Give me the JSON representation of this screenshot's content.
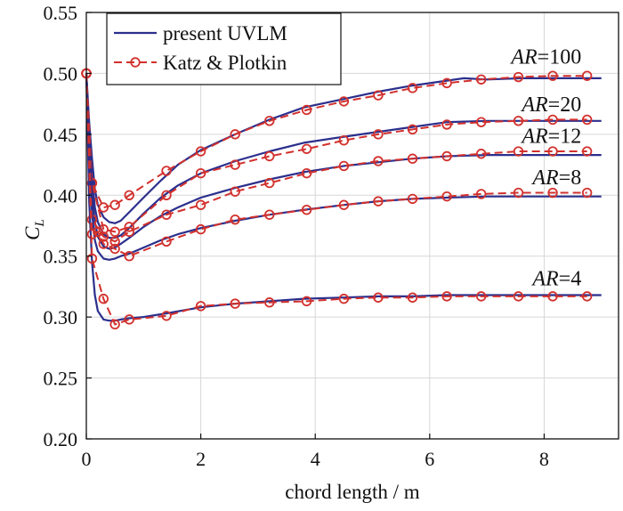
{
  "chart_data": {
    "type": "line",
    "xlabel": "chord length / m",
    "ylabel": "C",
    "ylabel_sub": "L",
    "xlim": [
      0,
      9.3
    ],
    "ylim": [
      0.2,
      0.55
    ],
    "xticks": [
      "0",
      "2",
      "4",
      "6",
      "8"
    ],
    "xtick_values": [
      0,
      2,
      4,
      6,
      8
    ],
    "yticks": [
      "0.20",
      "0.25",
      "0.30",
      "0.35",
      "0.40",
      "0.45",
      "0.50",
      "0.55"
    ],
    "ytick_values": [
      0.2,
      0.25,
      0.3,
      0.35,
      0.4,
      0.45,
      0.5,
      0.55
    ],
    "grid": true,
    "legend": {
      "placement": "top-left",
      "entries": [
        {
          "label": "present UVLM",
          "style": "solid",
          "color": "#2b2f8c"
        },
        {
          "label": "Katz & Plotkin",
          "style": "dashed-circle",
          "color": "#d2312d"
        }
      ]
    },
    "ar_labels": [
      {
        "italic": "AR",
        "text": "=100",
        "x": 8.65,
        "y": 0.508
      },
      {
        "italic": "AR",
        "text": "=20",
        "x": 8.65,
        "y": 0.469
      },
      {
        "italic": "AR",
        "text": "=12",
        "x": 8.65,
        "y": 0.443
      },
      {
        "italic": "AR",
        "text": "=8",
        "x": 8.65,
        "y": 0.409
      },
      {
        "italic": "AR",
        "text": "=4",
        "x": 8.65,
        "y": 0.326
      }
    ],
    "series": [
      {
        "name": "AR=100",
        "uvlm": {
          "x": [
            0,
            0.05,
            0.1,
            0.15,
            0.2,
            0.3,
            0.4,
            0.5,
            0.6,
            0.75,
            1.0,
            1.3,
            1.6,
            2.0,
            2.6,
            3.2,
            3.8,
            4.5,
            5.1,
            5.7,
            6.3,
            6.6,
            7.0,
            7.6,
            8.2,
            8.8,
            9.0
          ],
          "y": [
            0.5,
            0.46,
            0.43,
            0.405,
            0.392,
            0.382,
            0.378,
            0.377,
            0.379,
            0.386,
            0.398,
            0.412,
            0.425,
            0.437,
            0.45,
            0.462,
            0.472,
            0.479,
            0.485,
            0.49,
            0.494,
            0.496,
            0.495,
            0.496,
            0.496,
            0.496,
            0.496
          ]
        },
        "katz": {
          "x": [
            0,
            0.1,
            0.3,
            0.5,
            0.75,
            1.4,
            2.0,
            2.6,
            3.2,
            3.85,
            4.5,
            5.1,
            5.7,
            6.3,
            6.9,
            7.55,
            8.15,
            8.75
          ],
          "y": [
            0.5,
            0.41,
            0.39,
            0.392,
            0.4,
            0.42,
            0.436,
            0.45,
            0.461,
            0.47,
            0.477,
            0.482,
            0.488,
            0.492,
            0.495,
            0.497,
            0.498,
            0.498
          ]
        }
      },
      {
        "name": "AR=20",
        "uvlm": {
          "x": [
            0,
            0.05,
            0.1,
            0.15,
            0.2,
            0.3,
            0.4,
            0.5,
            0.6,
            0.75,
            1.0,
            1.3,
            1.6,
            2.0,
            2.6,
            3.2,
            3.8,
            4.5,
            5.1,
            5.7,
            6.3,
            7.0,
            7.6,
            8.2,
            8.8,
            9.0
          ],
          "y": [
            0.5,
            0.45,
            0.415,
            0.39,
            0.378,
            0.368,
            0.365,
            0.365,
            0.367,
            0.373,
            0.385,
            0.398,
            0.408,
            0.418,
            0.428,
            0.436,
            0.443,
            0.448,
            0.452,
            0.456,
            0.46,
            0.461,
            0.461,
            0.461,
            0.461,
            0.461
          ]
        },
        "katz": {
          "x": [
            0,
            0.1,
            0.3,
            0.5,
            0.75,
            1.4,
            2.0,
            2.6,
            3.2,
            3.85,
            4.5,
            5.1,
            5.7,
            6.3,
            6.9,
            7.55,
            8.15,
            8.75
          ],
          "y": [
            0.5,
            0.41,
            0.372,
            0.37,
            0.374,
            0.4,
            0.418,
            0.425,
            0.432,
            0.438,
            0.445,
            0.45,
            0.454,
            0.458,
            0.46,
            0.461,
            0.462,
            0.462
          ]
        }
      },
      {
        "name": "AR=12",
        "uvlm": {
          "x": [
            0,
            0.05,
            0.1,
            0.15,
            0.2,
            0.3,
            0.4,
            0.5,
            0.6,
            0.75,
            1.0,
            1.3,
            1.6,
            2.0,
            2.6,
            3.2,
            3.8,
            4.5,
            5.1,
            5.7,
            6.3,
            7.0,
            7.6,
            8.2,
            8.8,
            9.0
          ],
          "y": [
            0.5,
            0.44,
            0.4,
            0.378,
            0.366,
            0.358,
            0.356,
            0.357,
            0.36,
            0.365,
            0.374,
            0.383,
            0.39,
            0.398,
            0.406,
            0.413,
            0.419,
            0.424,
            0.427,
            0.43,
            0.432,
            0.433,
            0.433,
            0.433,
            0.433,
            0.433
          ]
        },
        "katz": {
          "x": [
            0,
            0.1,
            0.3,
            0.5,
            0.75,
            1.4,
            2.0,
            2.6,
            3.2,
            3.85,
            4.5,
            5.1,
            5.7,
            6.3,
            6.9,
            7.55,
            8.15,
            8.75
          ],
          "y": [
            0.5,
            0.38,
            0.366,
            0.362,
            0.37,
            0.384,
            0.392,
            0.403,
            0.41,
            0.418,
            0.424,
            0.428,
            0.43,
            0.432,
            0.434,
            0.436,
            0.436,
            0.436
          ]
        }
      },
      {
        "name": "AR=8",
        "uvlm": {
          "x": [
            0,
            0.05,
            0.1,
            0.15,
            0.2,
            0.3,
            0.4,
            0.5,
            0.6,
            0.75,
            1.0,
            1.3,
            1.6,
            2.0,
            2.6,
            3.2,
            3.8,
            4.5,
            5.1,
            5.7,
            6.3,
            7.0,
            7.6,
            8.2,
            8.8,
            9.0
          ],
          "y": [
            0.5,
            0.43,
            0.385,
            0.363,
            0.354,
            0.348,
            0.347,
            0.348,
            0.35,
            0.352,
            0.357,
            0.363,
            0.368,
            0.373,
            0.379,
            0.384,
            0.388,
            0.392,
            0.395,
            0.397,
            0.398,
            0.399,
            0.399,
            0.399,
            0.399,
            0.399
          ]
        },
        "katz": {
          "x": [
            0,
            0.1,
            0.2,
            0.3,
            0.5,
            0.75,
            1.4,
            2.0,
            2.6,
            3.2,
            3.85,
            4.5,
            5.1,
            5.7,
            6.3,
            6.9,
            7.55,
            8.15,
            8.75
          ],
          "y": [
            0.5,
            0.368,
            0.37,
            0.36,
            0.356,
            0.35,
            0.362,
            0.372,
            0.38,
            0.384,
            0.388,
            0.392,
            0.395,
            0.397,
            0.399,
            0.401,
            0.402,
            0.402,
            0.402
          ]
        }
      },
      {
        "name": "AR=4",
        "uvlm": {
          "x": [
            0,
            0.05,
            0.1,
            0.15,
            0.2,
            0.3,
            0.4,
            0.5,
            0.6,
            0.75,
            1.0,
            1.4,
            2.0,
            2.6,
            3.2,
            3.8,
            4.5,
            5.1,
            5.7,
            6.3,
            7.0,
            7.6,
            8.2,
            8.8,
            9.0
          ],
          "y": [
            0.5,
            0.395,
            0.345,
            0.318,
            0.305,
            0.298,
            0.297,
            0.297,
            0.298,
            0.299,
            0.3,
            0.303,
            0.308,
            0.311,
            0.313,
            0.315,
            0.316,
            0.317,
            0.317,
            0.318,
            0.318,
            0.318,
            0.318,
            0.318,
            0.318
          ]
        },
        "katz": {
          "x": [
            0,
            0.1,
            0.3,
            0.5,
            0.75,
            1.4,
            2.0,
            2.6,
            3.2,
            3.85,
            4.5,
            5.1,
            5.7,
            6.3,
            6.9,
            7.55,
            8.15,
            8.75
          ],
          "y": [
            0.5,
            0.348,
            0.315,
            0.294,
            0.298,
            0.301,
            0.309,
            0.311,
            0.312,
            0.313,
            0.315,
            0.316,
            0.316,
            0.317,
            0.317,
            0.317,
            0.317,
            0.317
          ]
        }
      }
    ]
  }
}
